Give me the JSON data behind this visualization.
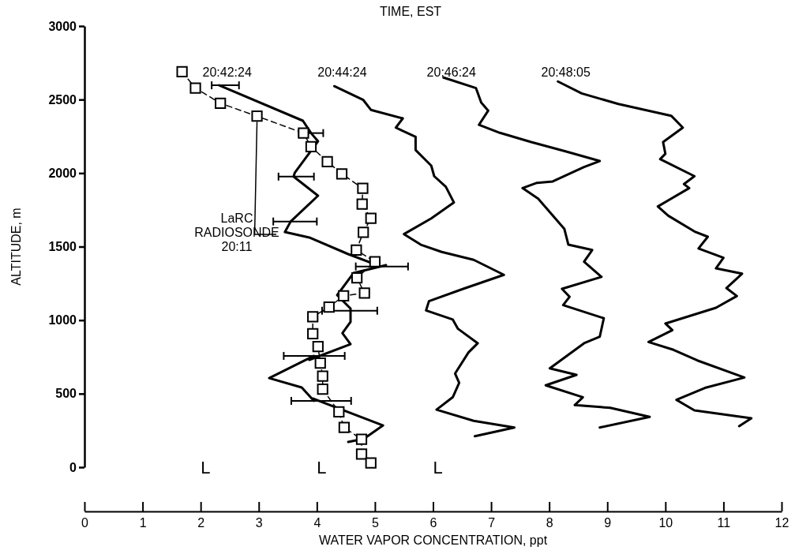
{
  "chart_data": {
    "type": "line",
    "title": "TIME, EST",
    "xlabel": "WATER VAPOR CONCENTRATION, ppt",
    "ylabel": "ALTITUDE, m",
    "xlim": [
      0,
      12
    ],
    "xticks": [
      0,
      1,
      2,
      3,
      4,
      5,
      6,
      7,
      8,
      9,
      10,
      11,
      12
    ],
    "ylim": [
      0,
      3000
    ],
    "yticks": [
      0,
      500,
      1000,
      1500,
      2000,
      2500,
      3000
    ],
    "grid": false,
    "legend": false,
    "annotations": [
      "L",
      "L",
      "L"
    ],
    "series": [
      {
        "name": "20:42:24",
        "color": "#000000",
        "line_style": "solid",
        "marker": "none",
        "x": [
          2.32,
          3.76,
          3.9,
          4.02,
          3.62,
          3.6,
          4.02,
          3.55,
          3.45,
          3.87,
          4.54,
          5.1,
          5.19,
          4.63,
          4.35,
          4.58,
          4.58,
          4.58,
          4.44,
          4.58,
          3.87,
          3.95,
          3.18,
          3.74,
          3.95,
          3.93,
          5.14,
          4.81,
          4.54
        ],
        "values": [
          2597,
          2356,
          2272,
          2216,
          2002,
          1976,
          1846,
          1671,
          1599,
          1562,
          1449,
          1365,
          1374,
          1320,
          1170,
          1079,
          1064,
          988,
          912,
          837,
          730,
          757,
          606,
          542,
          451,
          467,
          284,
          193,
          172
        ],
        "xerrors": [
          [
            2.19,
            2.66
          ],
          null,
          [
            3.69,
            4.11
          ],
          null,
          null,
          [
            3.34,
            3.95
          ],
          null,
          [
            3.25,
            4.0
          ],
          null,
          null,
          null,
          [
            4.67,
            5.57
          ],
          null,
          null,
          null,
          null,
          [
            4.09,
            5.04
          ],
          null,
          null,
          null,
          null,
          [
            3.43,
            4.48
          ],
          null,
          null,
          [
            3.56,
            4.59
          ],
          null,
          null,
          null,
          null
        ]
      },
      {
        "name": "20:44:24",
        "color": "#000000",
        "line_style": "solid",
        "marker": "none",
        "x": [
          4.3,
          4.8,
          4.93,
          5.48,
          5.36,
          5.7,
          5.7,
          5.97,
          6.02,
          6.22,
          6.36,
          5.97,
          5.5,
          5.79,
          6.15,
          6.7,
          7.22,
          6.52,
          5.93,
          5.88,
          6.34,
          6.43,
          6.77,
          6.61,
          6.38,
          6.45,
          6.34,
          6.06,
          6.7,
          7.4,
          6.72
        ],
        "values": [
          2591,
          2497,
          2430,
          2372,
          2309,
          2247,
          2157,
          2050,
          1979,
          1907,
          1800,
          1692,
          1585,
          1513,
          1464,
          1410,
          1308,
          1213,
          1129,
          1066,
          1004,
          941,
          843,
          780,
          637,
          574,
          476,
          391,
          315,
          270,
          211
        ]
      },
      {
        "name": "20:46:24",
        "color": "#000000",
        "line_style": "solid",
        "marker": "none",
        "x": [
          6.18,
          6.74,
          6.83,
          6.95,
          6.79,
          7.15,
          7.69,
          8.28,
          8.87,
          8.6,
          8.06,
          7.79,
          7.54,
          7.81,
          8.06,
          8.26,
          8.33,
          8.74,
          8.6,
          8.9,
          8.22,
          8.35,
          8.24,
          8.94,
          8.87,
          8.6,
          8.01,
          8.47,
          7.94,
          8.58,
          8.44,
          9.05,
          9.73,
          8.87
        ],
        "values": [
          2650,
          2578,
          2479,
          2425,
          2328,
          2274,
          2211,
          2148,
          2082,
          2041,
          1943,
          1934,
          1898,
          1826,
          1712,
          1621,
          1513,
          1477,
          1397,
          1294,
          1213,
          1159,
          1102,
          1013,
          887,
          843,
          672,
          628,
          557,
          476,
          422,
          404,
          342,
          270
        ]
      },
      {
        "name": "20:48:05",
        "color": "#000000",
        "line_style": "solid",
        "marker": "none",
        "x": [
          8.15,
          8.56,
          9.19,
          10.1,
          10.3,
          9.96,
          10.0,
          9.91,
          10.5,
          10.32,
          10.41,
          9.87,
          10.05,
          10.5,
          10.73,
          10.57,
          11.0,
          10.87,
          11.32,
          11.05,
          11.23,
          10.87,
          10.0,
          10.12,
          9.71,
          10.14,
          10.55,
          11.36,
          10.68,
          10.19,
          10.5,
          11.48,
          11.27
        ],
        "values": [
          2623,
          2542,
          2470,
          2390,
          2309,
          2211,
          2131,
          2095,
          1979,
          1925,
          1898,
          1773,
          1710,
          1603,
          1567,
          1487,
          1424,
          1352,
          1316,
          1218,
          1164,
          1084,
          977,
          932,
          851,
          798,
          726,
          610,
          539,
          458,
          386,
          333,
          279
        ]
      },
      {
        "name": "LaRC RADIOSONDE 20:11",
        "color": "#000000",
        "line_style": "dashed",
        "marker": "square",
        "x": [
          1.68,
          1.91,
          2.34,
          2.97,
          3.77,
          3.9,
          4.18,
          4.43,
          4.79,
          4.78,
          4.93,
          4.8,
          4.68,
          5.0,
          4.69,
          4.82,
          4.46,
          4.21,
          3.93,
          3.93,
          4.02,
          4.06,
          4.1,
          4.1,
          4.38,
          4.47,
          4.77,
          4.77,
          4.93
        ],
        "values": [
          2689,
          2578,
          2475,
          2387,
          2272,
          2179,
          2078,
          1995,
          1896,
          1789,
          1692,
          1597,
          1476,
          1397,
          1288,
          1184,
          1165,
          1089,
          1023,
          908,
          820,
          708,
          619,
          531,
          376,
          270,
          190,
          89,
          29
        ]
      }
    ]
  }
}
